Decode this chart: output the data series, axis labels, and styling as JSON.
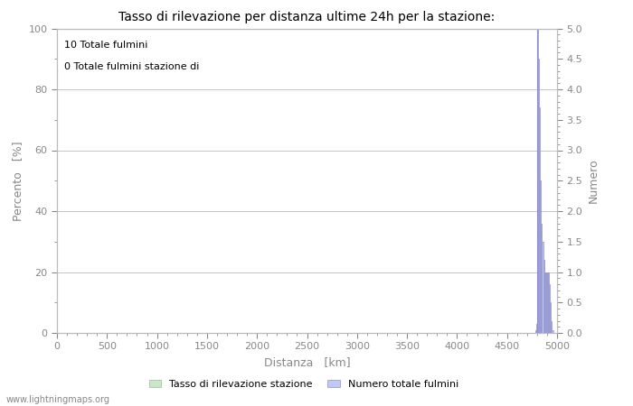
{
  "title": "Tasso di rilevazione per distanza ultime 24h per la stazione:",
  "xlabel": "Distanza   [km]",
  "ylabel_left": "Percento   [%]",
  "ylabel_right": "Numero",
  "xlim": [
    0,
    5000
  ],
  "ylim_left": [
    0,
    100
  ],
  "ylim_right": [
    0,
    5.0
  ],
  "yticks_left": [
    0,
    20,
    40,
    60,
    80,
    100
  ],
  "yticks_right": [
    0.0,
    0.5,
    1.0,
    1.5,
    2.0,
    2.5,
    3.0,
    3.5,
    4.0,
    4.5,
    5.0
  ],
  "xticks": [
    0,
    500,
    1000,
    1500,
    2000,
    2500,
    3000,
    3500,
    4000,
    4500,
    5000
  ],
  "annotation_line1": "10 Totale fulmini",
  "annotation_line2": "0 Totale fulmini stazione di",
  "legend_label1": "Tasso di rilevazione stazione",
  "legend_label2": "Numero totale fulmini",
  "color_bar_green": "#c8e8c8",
  "color_bar_blue": "#c0c8f8",
  "color_line_blue": "#9090cc",
  "watermark": "www.lightningmaps.org",
  "bg_color": "#ffffff",
  "grid_color": "#bbbbbb",
  "tick_color": "#888888",
  "label_color": "#888888",
  "bar_bins": [
    4700,
    4710,
    4720,
    4730,
    4740,
    4750,
    4760,
    4770,
    4780,
    4790,
    4800,
    4810,
    4820,
    4830,
    4840,
    4850,
    4860,
    4870,
    4880,
    4890,
    4900,
    4910,
    4920,
    4930,
    4940,
    4950
  ],
  "bar_heights": [
    0.0,
    0.0,
    0.0,
    0.0,
    0.0,
    0.0,
    0.0,
    0.0,
    0.05,
    0.15,
    5.0,
    4.5,
    3.7,
    2.5,
    1.8,
    1.5,
    1.2,
    1.0,
    1.0,
    1.0,
    1.0,
    1.0,
    0.8,
    0.5,
    0.2,
    0.05
  ]
}
